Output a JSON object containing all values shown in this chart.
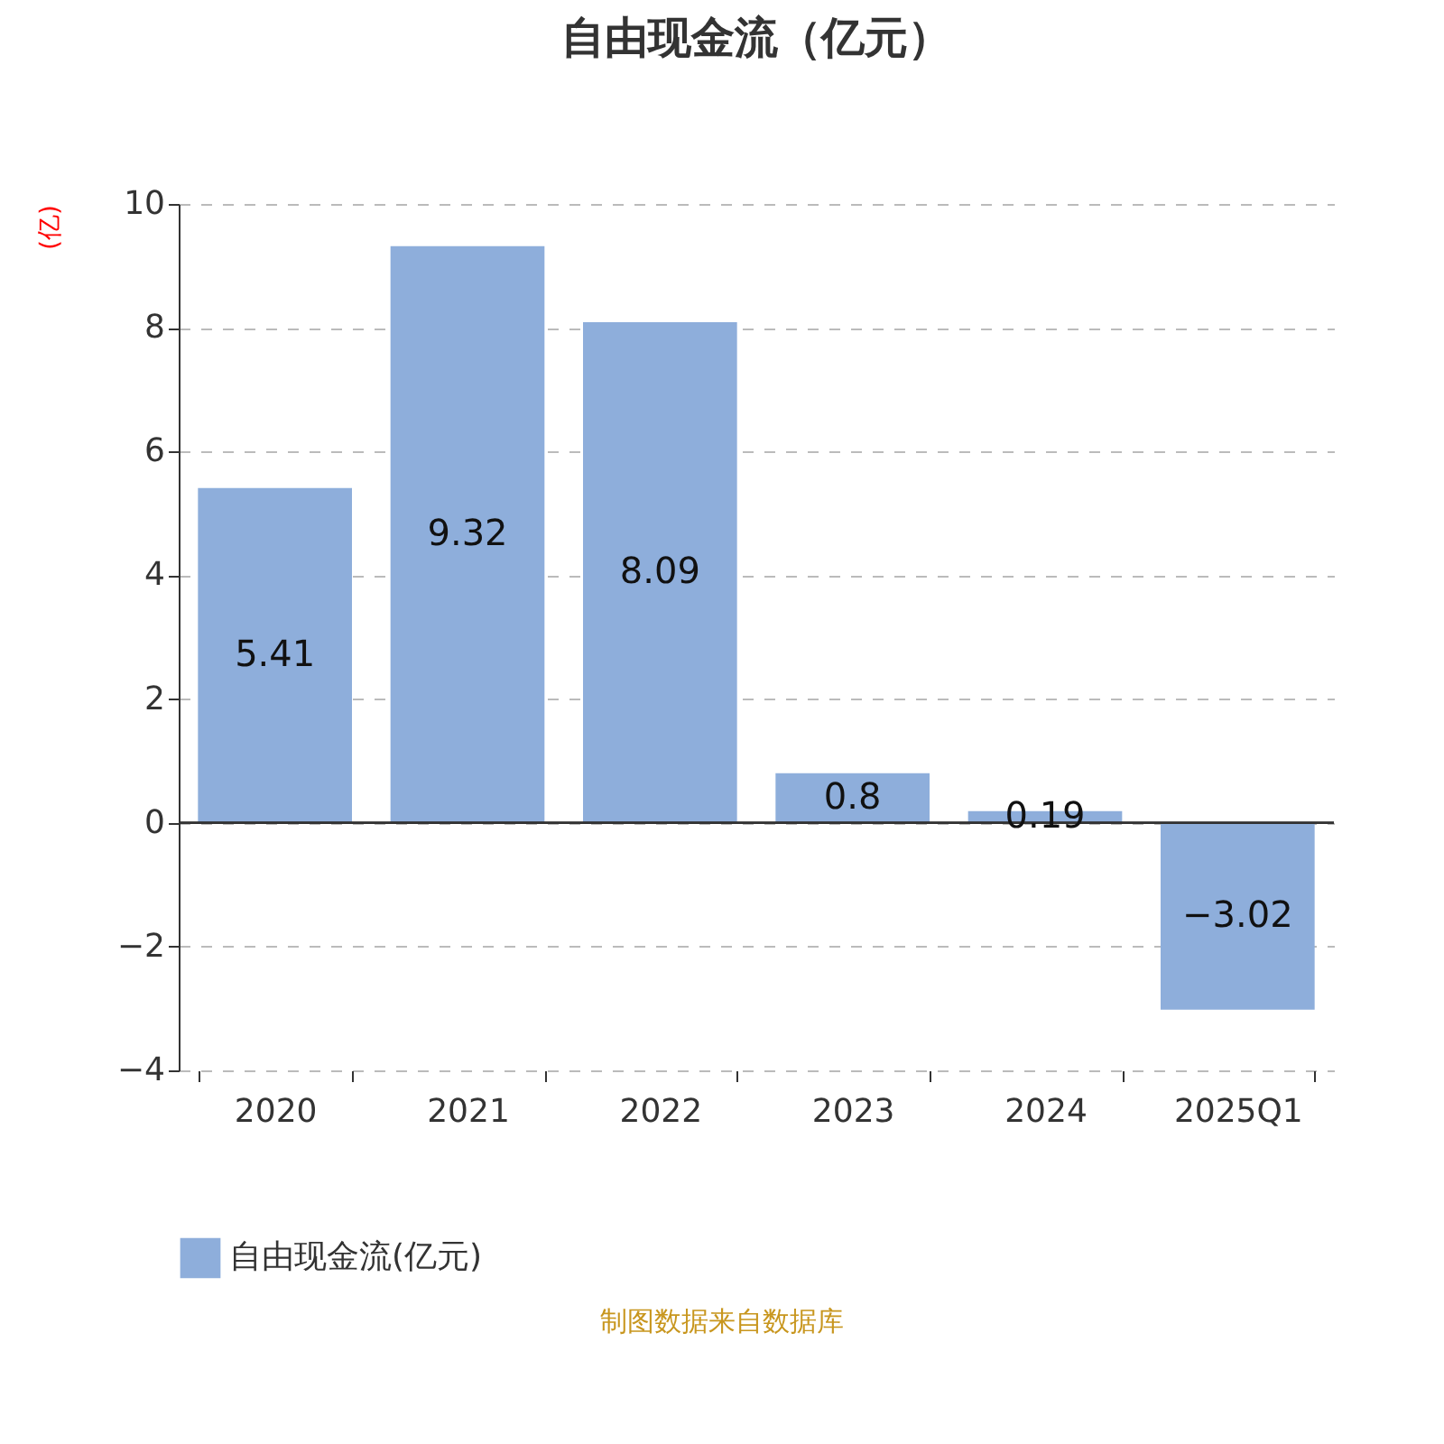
{
  "chart_data": {
    "type": "bar",
    "title": "自由现金流（亿元）",
    "ylabel": "(亿)",
    "categories": [
      "2020",
      "2021",
      "2022",
      "2023",
      "2024",
      "2025Q1"
    ],
    "series": [
      {
        "name": "自由现金流(亿元)",
        "color": "#8eaedb",
        "values": [
          5.41,
          9.32,
          8.09,
          0.8,
          0.19,
          -3.02
        ]
      }
    ],
    "ylim": [
      -4,
      10
    ],
    "yticks": [
      -4,
      -2,
      0,
      2,
      4,
      6,
      8,
      10
    ],
    "grid": "y",
    "legend": "bottom",
    "data_labels": true,
    "annotations": [
      "制图数据来自数据库"
    ]
  }
}
